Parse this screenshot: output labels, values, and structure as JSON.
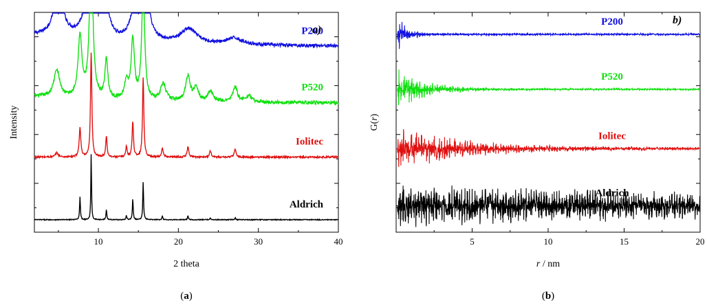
{
  "chart_data": [
    {
      "type": "line",
      "panel_label": "a)",
      "caption": "(a)",
      "xlabel": "2 theta",
      "ylabel": "Intensity",
      "xlim": [
        2,
        40
      ],
      "xticks": [
        10,
        20,
        30,
        40
      ],
      "y_ticks_labeled": false,
      "grid": false,
      "series": [
        {
          "name": "P200",
          "color": "#1010e0",
          "baseline": 0.87,
          "noise": 0.008,
          "tail": [
            2,
            0.05,
            12
          ],
          "peaks": [
            [
              5,
              0.22,
              0.7
            ],
            [
              9.2,
              0.62,
              0.55
            ],
            [
              11,
              0.12,
              0.5
            ],
            [
              14.3,
              0.08,
              0.5
            ],
            [
              15.6,
              0.52,
              0.5
            ],
            [
              21.3,
              0.07,
              1.2
            ],
            [
              27,
              0.03,
              1.2
            ]
          ]
        },
        {
          "name": "P520",
          "color": "#10e010",
          "baseline": 0.6,
          "noise": 0.008,
          "tail": [
            2,
            0.03,
            10
          ],
          "peaks": [
            [
              4.8,
              0.13,
              0.45
            ],
            [
              7.7,
              0.29,
              0.3
            ],
            [
              9.1,
              0.72,
              0.25
            ],
            [
              11,
              0.19,
              0.22
            ],
            [
              13.5,
              0.08,
              0.3
            ],
            [
              14.3,
              0.28,
              0.25
            ],
            [
              15.6,
              0.55,
              0.22
            ],
            [
              18.1,
              0.08,
              0.4
            ],
            [
              21.2,
              0.12,
              0.35
            ],
            [
              22.2,
              0.07,
              0.3
            ],
            [
              24,
              0.05,
              0.4
            ],
            [
              27.1,
              0.07,
              0.35
            ],
            [
              28.8,
              0.03,
              0.4
            ]
          ]
        },
        {
          "name": "Iolitec",
          "color": "#e01010",
          "baseline": 0.34,
          "noise": 0.004,
          "tail": [
            2,
            0,
            10
          ],
          "peaks": [
            [
              4.8,
              0.02,
              0.2
            ],
            [
              7.7,
              0.14,
              0.12
            ],
            [
              9.1,
              0.5,
              0.1
            ],
            [
              11,
              0.1,
              0.1
            ],
            [
              13.5,
              0.05,
              0.1
            ],
            [
              14.3,
              0.17,
              0.1
            ],
            [
              15.6,
              0.38,
              0.1
            ],
            [
              18,
              0.04,
              0.12
            ],
            [
              21.2,
              0.05,
              0.12
            ],
            [
              24,
              0.03,
              0.12
            ],
            [
              27.1,
              0.04,
              0.12
            ]
          ]
        },
        {
          "name": "Aldrich",
          "color": "#000000",
          "baseline": 0.04,
          "noise": 0.002,
          "tail": [
            2,
            0,
            10
          ],
          "peaks": [
            [
              7.7,
              0.11,
              0.06
            ],
            [
              9.1,
              0.32,
              0.05
            ],
            [
              11,
              0.05,
              0.06
            ],
            [
              13.5,
              0.02,
              0.06
            ],
            [
              14.3,
              0.1,
              0.06
            ],
            [
              15.6,
              0.18,
              0.06
            ],
            [
              18,
              0.02,
              0.06
            ],
            [
              21.2,
              0.02,
              0.06
            ],
            [
              24,
              0.01,
              0.06
            ],
            [
              27.1,
              0.01,
              0.06
            ]
          ]
        }
      ]
    },
    {
      "type": "line",
      "panel_label": "b)",
      "caption": "(b)",
      "xlabel_italic": "r",
      "xlabel_rest": " / nm",
      "ylabel_prefix": "G(",
      "ylabel_italic": "r",
      "ylabel_suffix": ")",
      "xlim": [
        0,
        20
      ],
      "xticks": [
        5,
        10,
        15,
        20
      ],
      "y_ticks_labeled": false,
      "grid": false,
      "series": [
        {
          "name": "P200",
          "color": "#1010e0",
          "baseline": 0.9,
          "amp": 0.09,
          "decay": 0.6,
          "floor": 0.006
        },
        {
          "name": "P520",
          "color": "#10e010",
          "baseline": 0.65,
          "amp": 0.09,
          "decay": 1.8,
          "floor": 0.005
        },
        {
          "name": "Iolitec",
          "color": "#e01010",
          "baseline": 0.38,
          "amp": 0.1,
          "decay": 4.5,
          "floor": 0.006
        },
        {
          "name": "Aldrich",
          "color": "#000000",
          "baseline": 0.12,
          "amp": 0.085,
          "decay": 30,
          "floor": 0.02
        }
      ]
    }
  ]
}
